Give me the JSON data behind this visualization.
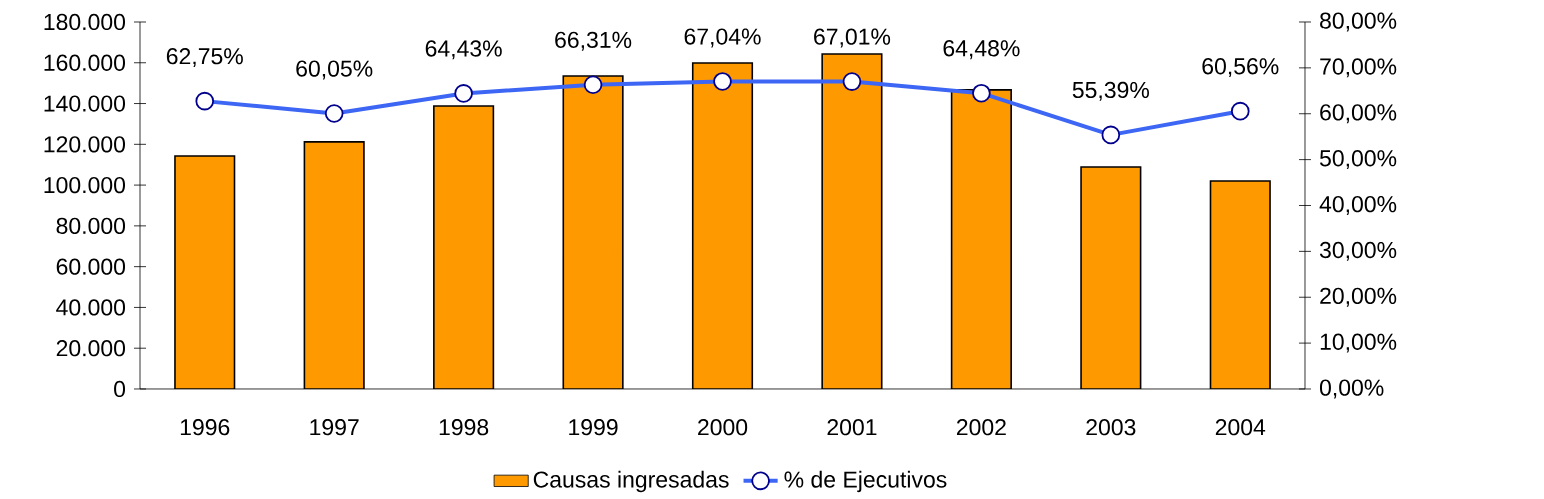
{
  "chart_data": {
    "type": "bar",
    "categories": [
      "1996",
      "1997",
      "1998",
      "1999",
      "2000",
      "2001",
      "2002",
      "2003",
      "2004"
    ],
    "series": [
      {
        "name": "Causas ingresadas",
        "color": "#ff9900",
        "values": [
          114300,
          121200,
          138800,
          153500,
          159900,
          164300,
          146700,
          108900,
          102000
        ]
      },
      {
        "name": "% de Ejecutivos",
        "type": "line",
        "axis": "y2",
        "color": "#3d66f5",
        "values": [
          62.75,
          60.05,
          64.43,
          66.31,
          67.04,
          67.01,
          64.48,
          55.39,
          60.56
        ],
        "value_labels": [
          "62,75%",
          "60,05%",
          "64,43%",
          "66,31%",
          "67,04%",
          "67,01%",
          "64,48%",
          "55,39%",
          "60,56%"
        ]
      }
    ],
    "ylim": [
      0,
      180000
    ],
    "yticks": [
      {
        "value": 0,
        "label": "0"
      },
      {
        "value": 20000,
        "label": "20.000"
      },
      {
        "value": 40000,
        "label": "40.000"
      },
      {
        "value": 60000,
        "label": "60.000"
      },
      {
        "value": 80000,
        "label": "80.000"
      },
      {
        "value": 100000,
        "label": "100.000"
      },
      {
        "value": 120000,
        "label": "120.000"
      },
      {
        "value": 140000,
        "label": "140.000"
      },
      {
        "value": 160000,
        "label": "160.000"
      },
      {
        "value": 180000,
        "label": "180.000"
      }
    ],
    "y2lim": [
      0,
      80
    ],
    "y2ticks": [
      {
        "value": 0,
        "label": "0,00%"
      },
      {
        "value": 10,
        "label": "10,00%"
      },
      {
        "value": 20,
        "label": "20,00%"
      },
      {
        "value": 30,
        "label": "30,00%"
      },
      {
        "value": 40,
        "label": "40,00%"
      },
      {
        "value": 50,
        "label": "50,00%"
      },
      {
        "value": 60,
        "label": "60,00%"
      },
      {
        "value": 70,
        "label": "70,00%"
      },
      {
        "value": 80,
        "label": "80,00%"
      }
    ],
    "legend": "bottom",
    "marker": "circle",
    "line_style": "solid"
  }
}
